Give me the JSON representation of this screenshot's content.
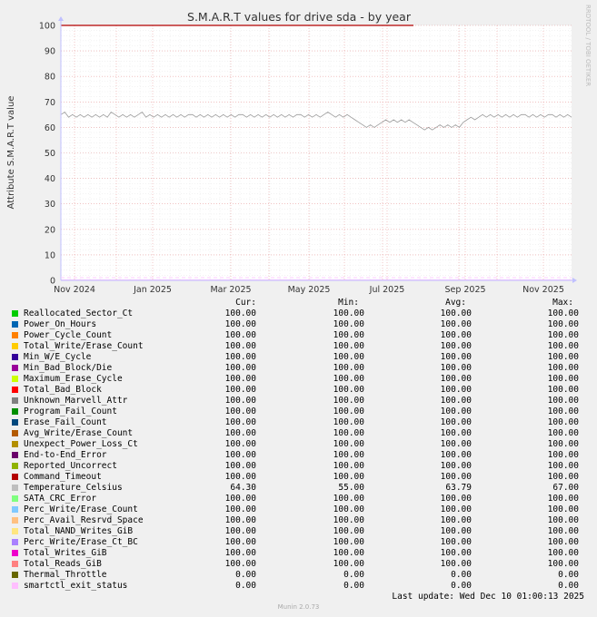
{
  "chart_data": {
    "type": "line",
    "title": "S.M.A.R.T values for drive sda - by year",
    "ylabel": "Attribute S.M.A.R.T value",
    "watermark": "RRDTOOL / TOBI OETIKER",
    "ylim": [
      0,
      100
    ],
    "yticks": [
      0,
      10,
      20,
      30,
      40,
      50,
      60,
      70,
      80,
      90,
      100
    ],
    "xtick_labels": [
      "Nov 2024",
      "Jan 2025",
      "Mar 2025",
      "May 2025",
      "Jul 2025",
      "Sep 2025",
      "Nov 2025"
    ],
    "grid": true,
    "series": [
      {
        "name": "Reallocated_Sector_Ct",
        "color": "#00cc00",
        "cur": "100.00",
        "min": "100.00",
        "avg": "100.00",
        "max": "100.00",
        "level": 100
      },
      {
        "name": "Power_On_Hours",
        "color": "#0066b3",
        "cur": "100.00",
        "min": "100.00",
        "avg": "100.00",
        "max": "100.00",
        "level": 100
      },
      {
        "name": "Power_Cycle_Count",
        "color": "#ff8000",
        "cur": "100.00",
        "min": "100.00",
        "avg": "100.00",
        "max": "100.00",
        "level": 100
      },
      {
        "name": "Total_Write/Erase_Count",
        "color": "#ffcc00",
        "cur": "100.00",
        "min": "100.00",
        "avg": "100.00",
        "max": "100.00",
        "level": 100
      },
      {
        "name": "Min_W/E_Cycle",
        "color": "#330099",
        "cur": "100.00",
        "min": "100.00",
        "avg": "100.00",
        "max": "100.00",
        "level": 100
      },
      {
        "name": "Min_Bad_Block/Die",
        "color": "#990099",
        "cur": "100.00",
        "min": "100.00",
        "avg": "100.00",
        "max": "100.00",
        "level": 100
      },
      {
        "name": "Maximum_Erase_Cycle",
        "color": "#ccff00",
        "cur": "100.00",
        "min": "100.00",
        "avg": "100.00",
        "max": "100.00",
        "level": 100
      },
      {
        "name": "Total_Bad_Block",
        "color": "#ff0000",
        "cur": "100.00",
        "min": "100.00",
        "avg": "100.00",
        "max": "100.00",
        "level": 100
      },
      {
        "name": "Unknown_Marvell_Attr",
        "color": "#808080",
        "cur": "100.00",
        "min": "100.00",
        "avg": "100.00",
        "max": "100.00",
        "level": 100
      },
      {
        "name": "Program_Fail_Count",
        "color": "#008f00",
        "cur": "100.00",
        "min": "100.00",
        "avg": "100.00",
        "max": "100.00",
        "level": 100
      },
      {
        "name": "Erase_Fail_Count",
        "color": "#00487d",
        "cur": "100.00",
        "min": "100.00",
        "avg": "100.00",
        "max": "100.00",
        "level": 100
      },
      {
        "name": "Avg_Write/Erase_Count",
        "color": "#b35a00",
        "cur": "100.00",
        "min": "100.00",
        "avg": "100.00",
        "max": "100.00",
        "level": 100
      },
      {
        "name": "Unexpect_Power_Loss_Ct",
        "color": "#b38f00",
        "cur": "100.00",
        "min": "100.00",
        "avg": "100.00",
        "max": "100.00",
        "level": 100
      },
      {
        "name": "End-to-End_Error",
        "color": "#6b006b",
        "cur": "100.00",
        "min": "100.00",
        "avg": "100.00",
        "max": "100.00",
        "level": 100
      },
      {
        "name": "Reported_Uncorrect",
        "color": "#8fb300",
        "cur": "100.00",
        "min": "100.00",
        "avg": "100.00",
        "max": "100.00",
        "level": 100
      },
      {
        "name": "Command_Timeout",
        "color": "#b30000",
        "cur": "100.00",
        "min": "100.00",
        "avg": "100.00",
        "max": "100.00",
        "level": 100
      },
      {
        "name": "Temperature_Celsius",
        "color": "#bebebe",
        "cur": "64.30",
        "min": "55.00",
        "avg": "63.79",
        "max": "67.00",
        "level": null
      },
      {
        "name": "SATA_CRC_Error",
        "color": "#80ff80",
        "cur": "100.00",
        "min": "100.00",
        "avg": "100.00",
        "max": "100.00",
        "level": 100
      },
      {
        "name": "Perc_Write/Erase_Count",
        "color": "#80c9ff",
        "cur": "100.00",
        "min": "100.00",
        "avg": "100.00",
        "max": "100.00",
        "level": 100
      },
      {
        "name": "Perc_Avail_Resrvd_Space",
        "color": "#ffc080",
        "cur": "100.00",
        "min": "100.00",
        "avg": "100.00",
        "max": "100.00",
        "level": 100
      },
      {
        "name": "Total_NAND_Writes_GiB",
        "color": "#ffe680",
        "cur": "100.00",
        "min": "100.00",
        "avg": "100.00",
        "max": "100.00",
        "level": 100
      },
      {
        "name": "Perc_Write/Erase_Ct_BC",
        "color": "#aa80ff",
        "cur": "100.00",
        "min": "100.00",
        "avg": "100.00",
        "max": "100.00",
        "level": 100
      },
      {
        "name": "Total_Writes_GiB",
        "color": "#ee00cc",
        "cur": "100.00",
        "min": "100.00",
        "avg": "100.00",
        "max": "100.00",
        "level": 100
      },
      {
        "name": "Total_Reads_GiB",
        "color": "#ff8080",
        "cur": "100.00",
        "min": "100.00",
        "avg": "100.00",
        "max": "100.00",
        "level": 100
      },
      {
        "name": "Thermal_Throttle",
        "color": "#666600",
        "cur": "0.00",
        "min": "0.00",
        "avg": "0.00",
        "max": "0.00",
        "level": 0
      },
      {
        "name": "smartctl_exit_status",
        "color": "#ffbfff",
        "cur": "0.00",
        "min": "0.00",
        "avg": "0.00",
        "max": "0.00",
        "level": 0
      }
    ],
    "temperature_trace": [
      65,
      66,
      64,
      65,
      64,
      65,
      64,
      65,
      64,
      65,
      64,
      65,
      64,
      66,
      65,
      64,
      65,
      64,
      65,
      64,
      65,
      66,
      64,
      65,
      64,
      65,
      64,
      65,
      64,
      65,
      64,
      65,
      64,
      65,
      65,
      64,
      65,
      64,
      65,
      64,
      65,
      64,
      65,
      64,
      65,
      64,
      65,
      65,
      64,
      65,
      64,
      65,
      64,
      65,
      64,
      65,
      64,
      65,
      64,
      65,
      64,
      65,
      65,
      64,
      65,
      64,
      65,
      64,
      65,
      66,
      65,
      64,
      65,
      64,
      65,
      64,
      63,
      62,
      61,
      60,
      61,
      60,
      61,
      62,
      63,
      62,
      63,
      62,
      63,
      62,
      63,
      62,
      61,
      60,
      59,
      60,
      59,
      60,
      61,
      60,
      61,
      60,
      61,
      60,
      62,
      63,
      64,
      63,
      64,
      65,
      64,
      65,
      64,
      65,
      64,
      65,
      64,
      65,
      64,
      65,
      65,
      64,
      65,
      64,
      65,
      64,
      65,
      65,
      64,
      65,
      64,
      65,
      64
    ]
  },
  "table_headers": {
    "cur": "Cur:",
    "min": "Min:",
    "avg": "Avg:",
    "max": "Max:"
  },
  "last_update": "Last update: Wed Dec 10 01:00:13 2025",
  "munin_version": "Munin 2.0.73"
}
